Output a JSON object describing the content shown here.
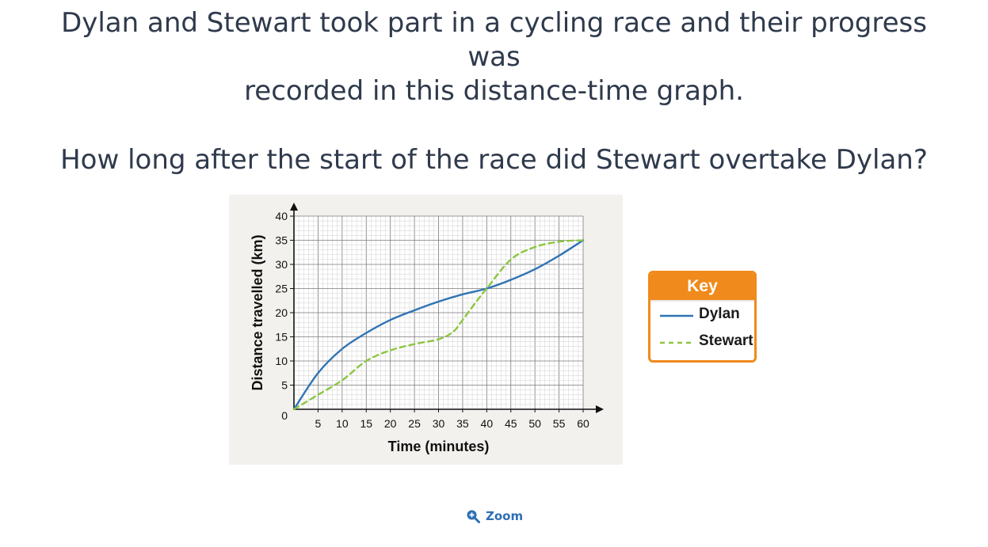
{
  "question": {
    "line1": "Dylan and Stewart took part in a cycling race and their progress was",
    "line2": "recorded in this distance-time graph.",
    "line3": "How long after the start of the race did Stewart overtake Dylan?"
  },
  "chart_data": {
    "type": "line",
    "title": "",
    "xlabel": "Time (minutes)",
    "ylabel": "Distance travelled (km)",
    "xlim": [
      0,
      60
    ],
    "ylim": [
      0,
      40
    ],
    "xticks": [
      5,
      10,
      15,
      20,
      25,
      30,
      35,
      40,
      45,
      50,
      55,
      60
    ],
    "yticks": [
      5,
      10,
      15,
      20,
      25,
      30,
      35,
      40
    ],
    "origin_label": "0",
    "grid": true,
    "series": [
      {
        "name": "Dylan",
        "style": "solid",
        "color": "#2f73b4",
        "x": [
          0,
          5,
          10,
          15,
          20,
          25,
          30,
          35,
          40,
          45,
          50,
          55,
          60
        ],
        "y": [
          0,
          7.5,
          12.5,
          15.8,
          18.5,
          20.5,
          22.3,
          23.8,
          25,
          26.8,
          29,
          31.8,
          35
        ]
      },
      {
        "name": "Stewart",
        "style": "dashed",
        "color": "#8cc63f",
        "x": [
          0,
          5,
          10,
          15,
          20,
          25,
          30,
          33,
          35,
          38,
          40,
          45,
          50,
          55,
          60
        ],
        "y": [
          0,
          3,
          6,
          10,
          12.2,
          13.5,
          14.5,
          16,
          18.5,
          22.5,
          25,
          31,
          33.6,
          34.7,
          35
        ]
      }
    ]
  },
  "key": {
    "title": "Key",
    "items": [
      "Dylan",
      "Stewart"
    ]
  },
  "zoom": {
    "label": "Zoom"
  },
  "colors": {
    "text": "#2f3a4c",
    "key_border": "#f08a1c",
    "dylan": "#2f73b4",
    "stewart": "#8cc63f",
    "zoom": "#2e6fb4"
  },
  "icons": {
    "zoom": "magnifier-plus-icon"
  }
}
